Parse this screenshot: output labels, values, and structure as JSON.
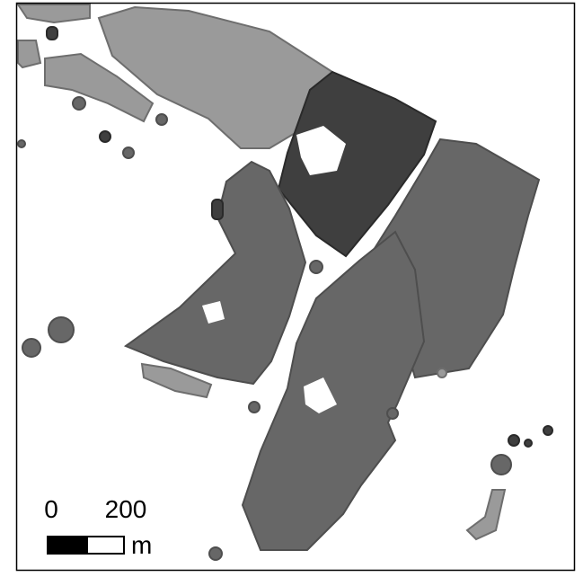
{
  "scale_bar": {
    "labels": [
      "0",
      "200"
    ],
    "unit": "m"
  }
}
